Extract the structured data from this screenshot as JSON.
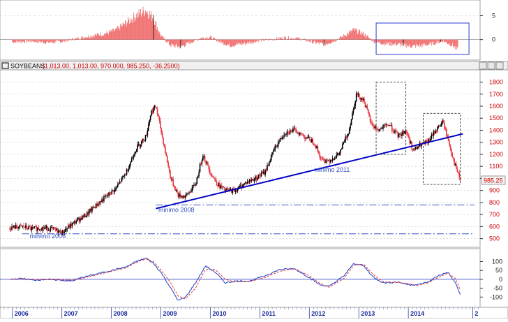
{
  "title_bar": {
    "symbol": "SOYBEANS",
    "ohlc_text": "(1,013.00, 1,013.00, 970.000, 985.250, -36.2500)"
  },
  "colors": {
    "bull": "#000000",
    "bear": "#e8323c",
    "trendline": "#0000c8",
    "support": "#3050c0",
    "grid": "#c8c8c8",
    "axis_text": "#cc0000",
    "oscillator_fill": "#f07070",
    "macd": "#1a3ec8",
    "signal": "#e83030",
    "last_price_bg": "#f4f4f4",
    "header_bg": "#f0f0f0"
  },
  "chart_data": [
    {
      "type": "area",
      "panel": "top-oscillator",
      "ylim": [
        -4,
        8
      ],
      "yticks": [
        0,
        5
      ],
      "x": [
        2005.6,
        2006.0,
        2006.3,
        2006.6,
        2006.9,
        2007.2,
        2007.5,
        2007.7,
        2007.9,
        2008.1,
        2008.3,
        2008.45,
        2008.6,
        2008.8,
        2009.0,
        2009.2,
        2009.4,
        2009.6,
        2009.8,
        2010.0,
        2010.3,
        2010.6,
        2010.9,
        2011.1,
        2011.4,
        2011.7,
        2011.9,
        2012.1,
        2012.3,
        2012.5,
        2012.7,
        2012.9,
        2013.1,
        2013.4,
        2013.7,
        2013.9,
        2014.1,
        2014.3,
        2014.5,
        2014.6
      ],
      "values": [
        -0.5,
        -0.3,
        -0.6,
        -0.4,
        0.2,
        0.8,
        1.3,
        2.0,
        3.5,
        5.0,
        6.2,
        4.5,
        0.8,
        -1.2,
        -1.5,
        -0.6,
        0.3,
        0.5,
        -0.5,
        -1.2,
        -0.8,
        -0.2,
        0.1,
        0.4,
        0.2,
        -0.6,
        -1.0,
        -0.3,
        0.8,
        2.0,
        1.2,
        -0.4,
        -0.8,
        -1.0,
        -1.4,
        -1.2,
        -0.8,
        -0.3,
        -1.2,
        -2.3
      ],
      "highlight_box": {
        "x": [
          2012.95,
          2014.6
        ]
      }
    },
    {
      "type": "candlestick",
      "panel": "price",
      "ylim": [
        440,
        1890
      ],
      "yticks": [
        500,
        600,
        700,
        800,
        900,
        1000,
        1100,
        1200,
        1300,
        1400,
        1500,
        1600,
        1700,
        1800
      ],
      "last_price": "985.25",
      "x": [
        2005.55,
        2005.8,
        2006.0,
        2006.2,
        2006.4,
        2006.6,
        2006.75,
        2006.9,
        2007.1,
        2007.3,
        2007.5,
        2007.7,
        2007.9,
        2008.1,
        2008.3,
        2008.4,
        2008.5,
        2008.65,
        2008.8,
        2008.95,
        2009.1,
        2009.3,
        2009.45,
        2009.6,
        2009.75,
        2009.9,
        2010.1,
        2010.3,
        2010.5,
        2010.7,
        2010.9,
        2011.1,
        2011.3,
        2011.5,
        2011.7,
        2011.85,
        2012.0,
        2012.2,
        2012.4,
        2012.55,
        2012.7,
        2012.85,
        2013.0,
        2013.2,
        2013.4,
        2013.55,
        2013.7,
        2013.85,
        2014.0,
        2014.15,
        2014.3,
        2014.45,
        2014.55,
        2014.65
      ],
      "close": [
        590,
        600,
        580,
        590,
        580,
        550,
        600,
        650,
        700,
        780,
        850,
        920,
        1050,
        1250,
        1350,
        1550,
        1600,
        1300,
        1000,
        860,
        850,
        950,
        1200,
        1050,
        950,
        900,
        900,
        960,
        1000,
        1050,
        1250,
        1380,
        1400,
        1350,
        1300,
        1150,
        1150,
        1200,
        1400,
        1700,
        1650,
        1450,
        1400,
        1450,
        1350,
        1400,
        1230,
        1280,
        1300,
        1400,
        1470,
        1250,
        1100,
        985
      ],
      "trendline": {
        "from": [
          2008.5,
          750
        ],
        "to": [
          2014.7,
          1370
        ]
      },
      "support_lines": [
        {
          "y": 780,
          "label": "minimo 2008"
        },
        {
          "y": 540,
          "label": "minimo 2006"
        }
      ],
      "annotations": [
        {
          "text": "minimo 2011",
          "x": 2011.7,
          "y": 1055
        },
        {
          "text": "minimo 2008",
          "x": 2008.55,
          "y": 720
        },
        {
          "text": "minimo 2006",
          "x": 2005.95,
          "y": 505
        }
      ],
      "boxes": [
        {
          "x": [
            2012.95,
            2013.55
          ],
          "y": [
            1200,
            1800
          ]
        },
        {
          "x": [
            2013.9,
            2014.65
          ],
          "y": [
            950,
            1540
          ]
        }
      ]
    },
    {
      "type": "line",
      "panel": "bottom-oscillator",
      "ylim": [
        -150,
        165
      ],
      "yticks": [
        -100,
        -50,
        0,
        50,
        100
      ],
      "x": [
        2005.55,
        2005.8,
        2006.0,
        2006.3,
        2006.6,
        2006.8,
        2007.0,
        2007.3,
        2007.6,
        2007.9,
        2008.1,
        2008.3,
        2008.45,
        2008.6,
        2008.8,
        2008.95,
        2009.1,
        2009.3,
        2009.5,
        2009.7,
        2009.9,
        2010.1,
        2010.4,
        2010.7,
        2011.0,
        2011.3,
        2011.6,
        2011.8,
        2012.0,
        2012.3,
        2012.5,
        2012.7,
        2012.9,
        2013.1,
        2013.4,
        2013.6,
        2013.8,
        2014.0,
        2014.2,
        2014.4,
        2014.55,
        2014.65
      ],
      "series": [
        {
          "values": [
            0,
            5,
            -5,
            0,
            -5,
            -10,
            10,
            30,
            50,
            70,
            100,
            120,
            90,
            40,
            -50,
            -120,
            -100,
            -20,
            75,
            40,
            -20,
            -10,
            -10,
            20,
            55,
            60,
            10,
            -30,
            -40,
            20,
            90,
            75,
            10,
            -20,
            -15,
            -30,
            -30,
            -15,
            20,
            40,
            -20,
            -85
          ]
        },
        {
          "values": [
            0,
            3,
            0,
            -2,
            -3,
            -5,
            5,
            25,
            45,
            65,
            95,
            115,
            100,
            55,
            -20,
            -95,
            -110,
            -50,
            55,
            55,
            0,
            -15,
            -12,
            10,
            45,
            60,
            20,
            -20,
            -45,
            5,
            80,
            85,
            25,
            -15,
            -18,
            -25,
            -35,
            -20,
            10,
            35,
            5,
            -60
          ]
        }
      ]
    }
  ],
  "x_axis": {
    "years": [
      {
        "label": "2006",
        "x": 2005.6
      },
      {
        "label": "2007",
        "x": 2006.6
      },
      {
        "label": "2008",
        "x": 2007.6
      },
      {
        "label": "2009",
        "x": 2008.6
      },
      {
        "label": "2010",
        "x": 2009.6
      },
      {
        "label": "2011",
        "x": 2010.6
      },
      {
        "label": "2012",
        "x": 2011.6
      },
      {
        "label": "2013",
        "x": 2012.6
      },
      {
        "label": "2014",
        "x": 2013.6
      },
      {
        "label": "2",
        "x": 2014.9
      }
    ],
    "range": [
      2005.35,
      2015.05
    ]
  }
}
